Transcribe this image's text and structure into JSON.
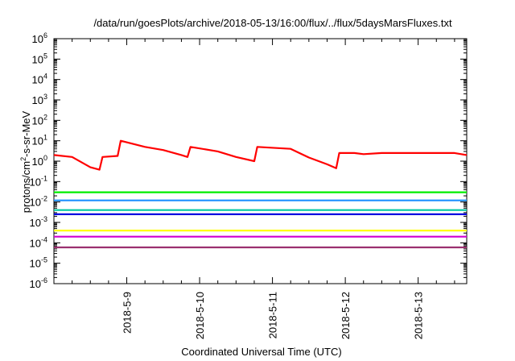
{
  "chart_data": {
    "type": "line",
    "title": "/data/run/goesPlots/archive/2018-05-13/16:00/flux/../flux/5daysMarsFluxes.txt",
    "xlabel": "Coordinated Universal Time (UTC)",
    "ylabel": {
      "base": "protons/cm",
      "sup": "2",
      "rest": "-s-sr-MeV"
    },
    "y_scale": "log",
    "ylim": [
      1e-06,
      1000000.0
    ],
    "y_ticks": [
      {
        "base": "10",
        "exp": "-6"
      },
      {
        "base": "10",
        "exp": "-5"
      },
      {
        "base": "10",
        "exp": "-4"
      },
      {
        "base": "10",
        "exp": "-3"
      },
      {
        "base": "10",
        "exp": "-2"
      },
      {
        "base": "10",
        "exp": "-1"
      },
      {
        "base": "10",
        "exp": "0"
      },
      {
        "base": "10",
        "exp": "1"
      },
      {
        "base": "10",
        "exp": "2"
      },
      {
        "base": "10",
        "exp": "3"
      },
      {
        "base": "10",
        "exp": "4"
      },
      {
        "base": "10",
        "exp": "5"
      },
      {
        "base": "10",
        "exp": "6"
      }
    ],
    "xlim": [
      "2018-05-08 00:00",
      "2018-05-13 16:00"
    ],
    "x_ticks": [
      "2018-5-9",
      "2018-5-10",
      "2018-5-11",
      "2018-5-12",
      "2018-5-13"
    ],
    "grid": false,
    "legend": "none",
    "series": [
      {
        "color": "#ff0000",
        "x": [
          "2018-05-08 00:00",
          "2018-05-08 06:00",
          "2018-05-08 12:00",
          "2018-05-08 15:00",
          "2018-05-08 16:00",
          "2018-05-08 21:00",
          "2018-05-08 22:00",
          "2018-05-09 06:00",
          "2018-05-09 12:00",
          "2018-05-09 18:00",
          "2018-05-09 20:00",
          "2018-05-09 21:00",
          "2018-05-10 06:00",
          "2018-05-10 12:00",
          "2018-05-10 18:00",
          "2018-05-10 19:00",
          "2018-05-11 06:00",
          "2018-05-11 12:00",
          "2018-05-11 18:00",
          "2018-05-11 21:00",
          "2018-05-11 22:00",
          "2018-05-12 03:00",
          "2018-05-12 06:00",
          "2018-05-12 12:00",
          "2018-05-12 18:00",
          "2018-05-13 00:00",
          "2018-05-13 06:00",
          "2018-05-13 12:00",
          "2018-05-13 16:00"
        ],
        "y": [
          2,
          1.6,
          0.5,
          0.38,
          1.6,
          1.8,
          10,
          5,
          3.5,
          2,
          1.6,
          5,
          3,
          1.6,
          1,
          5,
          4,
          1.5,
          0.7,
          0.45,
          2.5,
          2.5,
          2.2,
          2.5,
          2.5,
          2.5,
          2.5,
          2.5,
          2
        ]
      },
      {
        "color": "#00ee00",
        "x": [
          "2018-05-08 00:00",
          "2018-05-13 16:00"
        ],
        "y": [
          0.03,
          0.03
        ]
      },
      {
        "color": "#1e90ff",
        "x": [
          "2018-05-08 00:00",
          "2018-05-13 16:00"
        ],
        "y": [
          0.012,
          0.012
        ]
      },
      {
        "color": "#00c8a0",
        "x": [
          "2018-05-08 00:00",
          "2018-05-13 16:00"
        ],
        "y": [
          0.004,
          0.004
        ]
      },
      {
        "color": "#0000e0",
        "x": [
          "2018-05-08 00:00",
          "2018-05-13 16:00"
        ],
        "y": [
          0.0025,
          0.0025
        ]
      },
      {
        "color": "#ffff00",
        "x": [
          "2018-05-08 00:00",
          "2018-05-13 16:00"
        ],
        "y": [
          0.0004,
          0.0004
        ]
      },
      {
        "color": "#d000d0",
        "x": [
          "2018-05-08 00:00",
          "2018-05-13 16:00"
        ],
        "y": [
          0.0002,
          0.0002
        ]
      },
      {
        "color": "#9b3070",
        "x": [
          "2018-05-08 00:00",
          "2018-05-13 16:00"
        ],
        "y": [
          6e-05,
          6e-05
        ]
      }
    ]
  }
}
